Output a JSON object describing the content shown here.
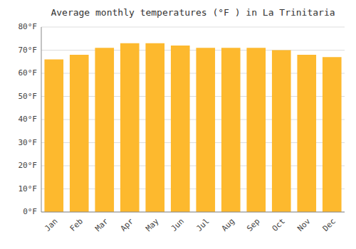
{
  "chart_data": {
    "type": "bar",
    "title": "Average monthly temperatures (°F ) in La Trinitaria",
    "categories": [
      "Jan",
      "Feb",
      "Mar",
      "Apr",
      "May",
      "Jun",
      "Jul",
      "Aug",
      "Sep",
      "Oct",
      "Nov",
      "Dec"
    ],
    "values": [
      66,
      68,
      71,
      73,
      73,
      72,
      71,
      71,
      71,
      70,
      68,
      67
    ],
    "color": "#FDB92E",
    "ylim": [
      0,
      80
    ],
    "yticks": [
      {
        "value": 0,
        "label": "0°F"
      },
      {
        "value": 10,
        "label": "10°F"
      },
      {
        "value": 20,
        "label": "20°F"
      },
      {
        "value": 30,
        "label": "30°F"
      },
      {
        "value": 40,
        "label": "40°F"
      },
      {
        "value": 50,
        "label": "50°F"
      },
      {
        "value": 60,
        "label": "60°F"
      },
      {
        "value": 70,
        "label": "70°F"
      },
      {
        "value": 80,
        "label": "80°F"
      }
    ],
    "grid": true
  }
}
